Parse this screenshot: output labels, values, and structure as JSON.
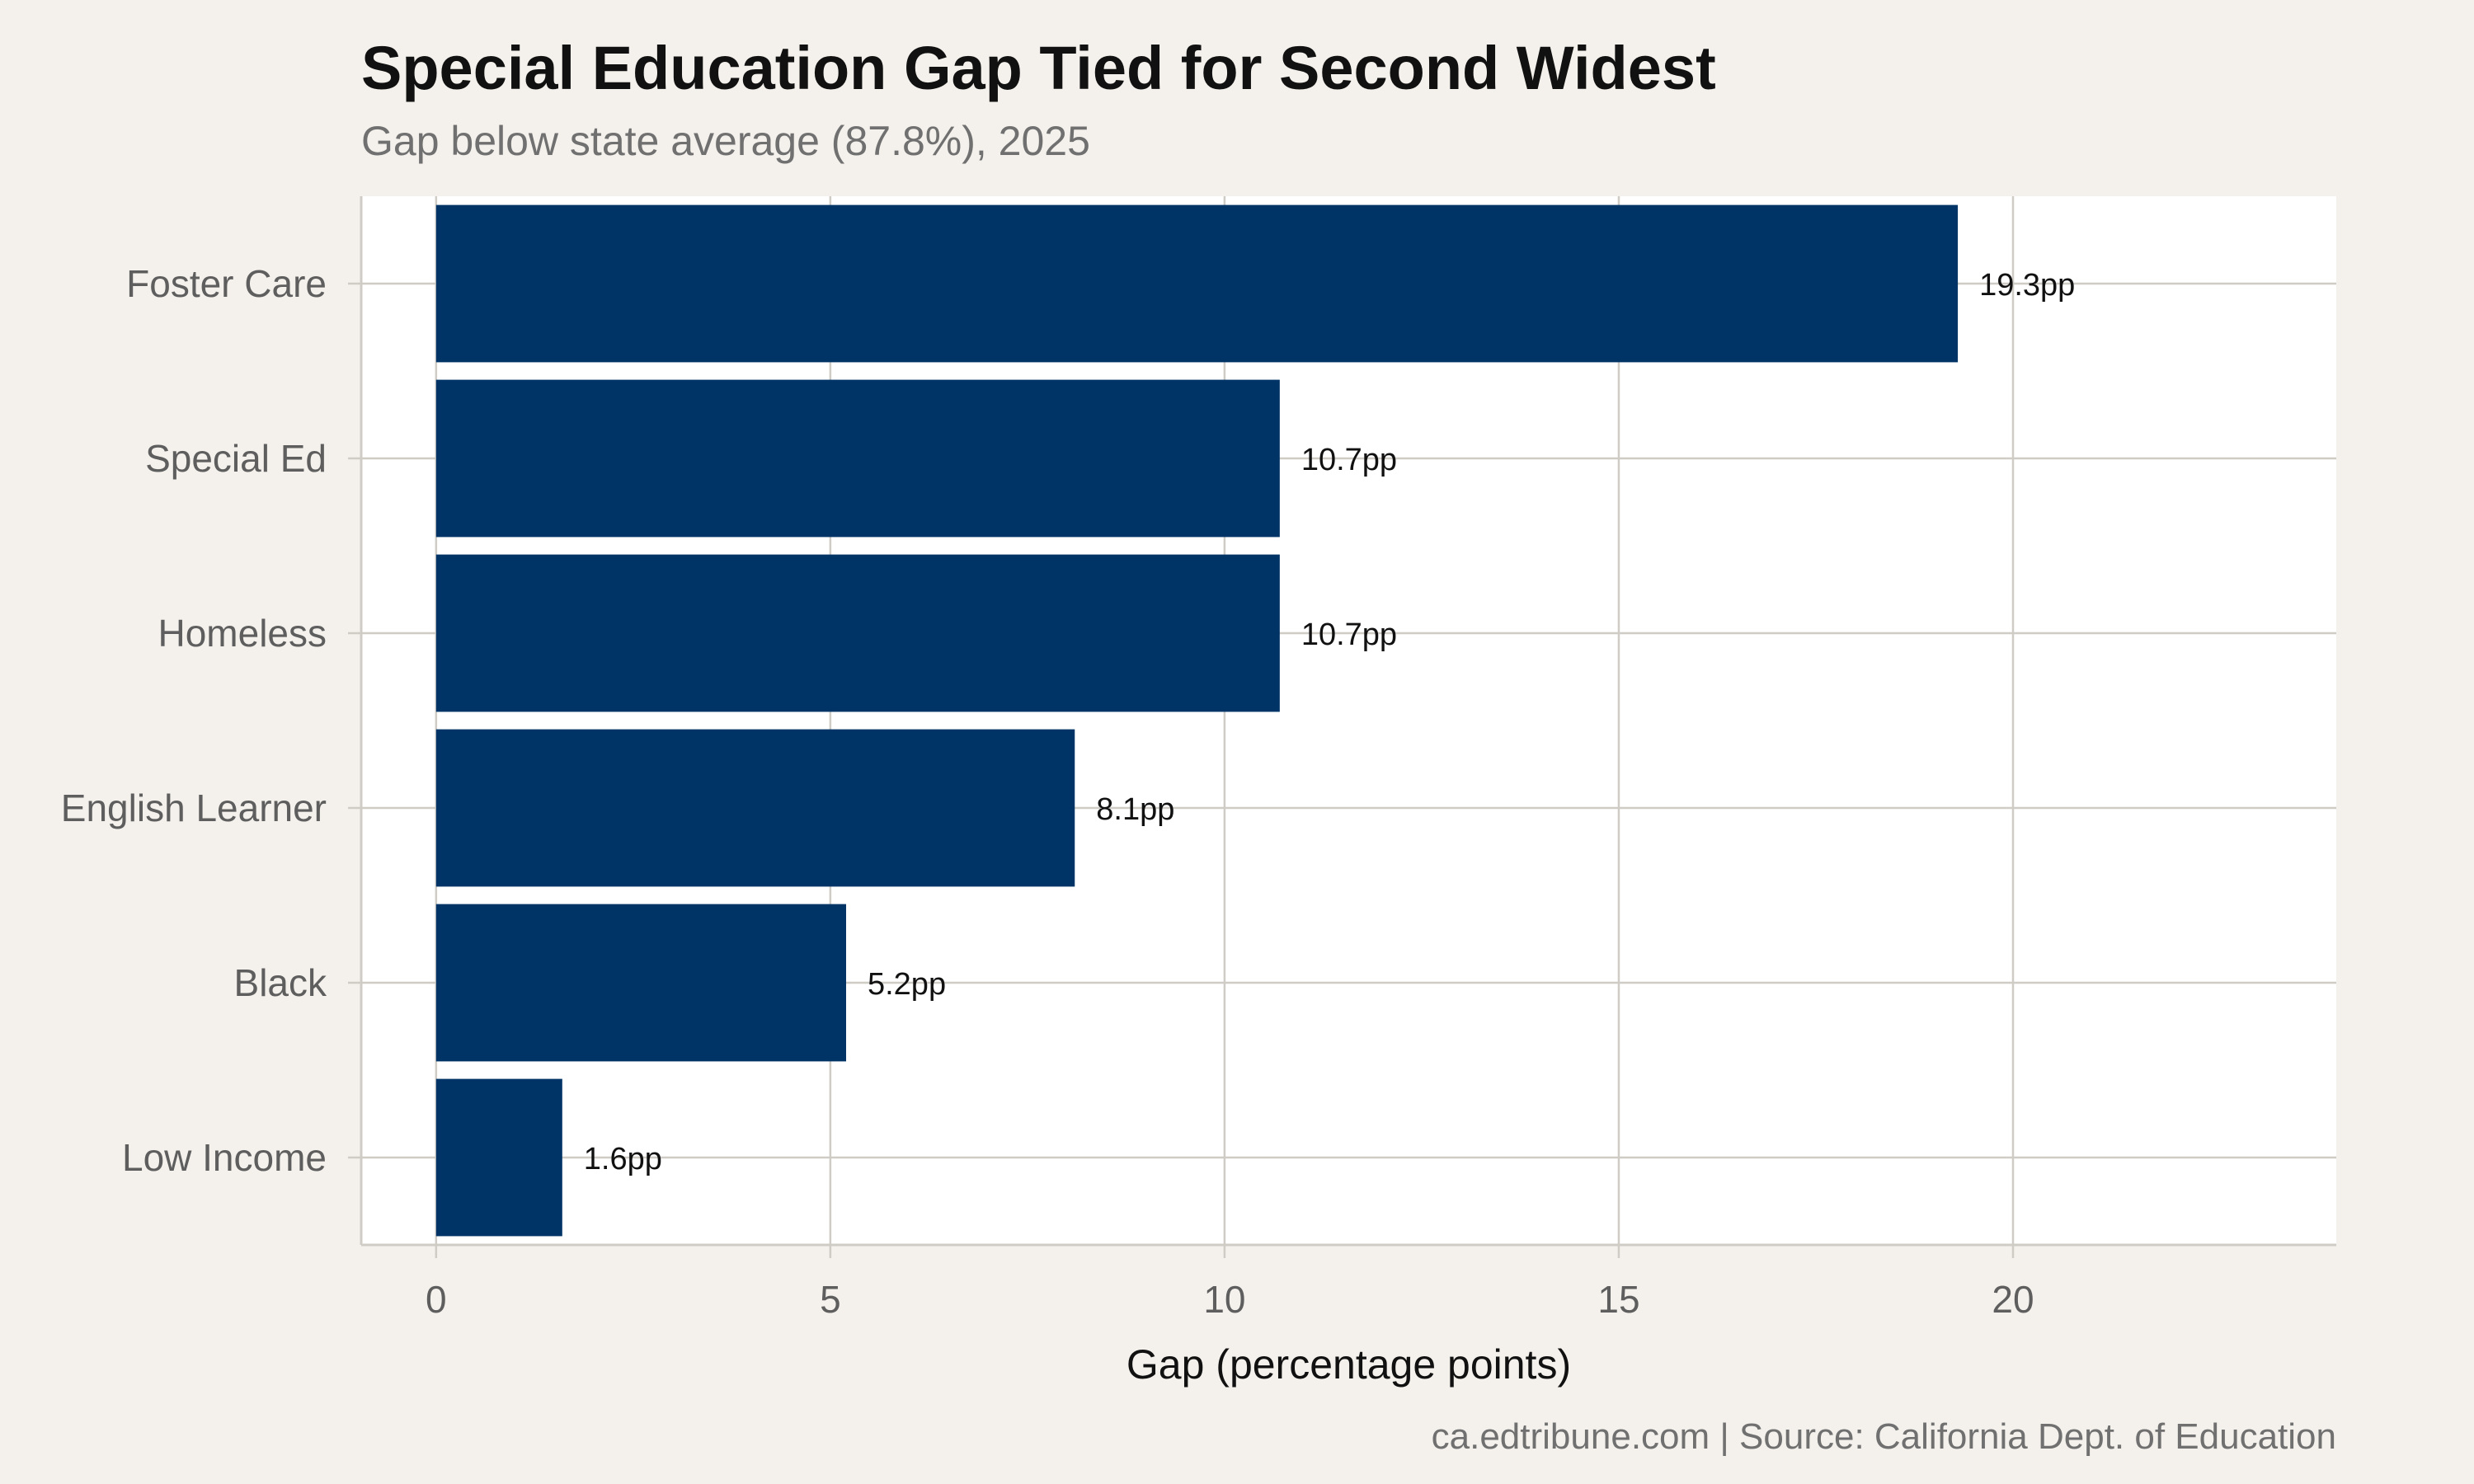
{
  "colors": {
    "background": "#f4f1ec",
    "panel": "#ffffff",
    "bar": "#003366",
    "grid": "#cfccc6"
  },
  "chart_data": {
    "type": "bar",
    "orientation": "horizontal",
    "title": "Special Education Gap Tied for Second Widest",
    "subtitle": "Gap below state average (87.8%), 2025",
    "xlabel": "Gap (percentage points)",
    "ylabel": "",
    "categories": [
      "Foster Care",
      "Special Ed",
      "Homeless",
      "English Learner",
      "Black",
      "Low Income"
    ],
    "values": [
      19.3,
      10.7,
      10.7,
      8.1,
      5.2,
      1.6
    ],
    "data_labels": [
      "19.3pp",
      "10.7pp",
      "10.7pp",
      "8.1pp",
      "5.2pp",
      "1.6pp"
    ],
    "xticks": [
      0,
      5,
      10,
      15,
      20
    ],
    "xtick_labels": [
      "0",
      "5",
      "10",
      "15",
      "20"
    ],
    "xlim": [
      -0.95,
      24.1
    ],
    "grid": true,
    "caption": "ca.edtribune.com | Source: California Dept. of Education"
  }
}
